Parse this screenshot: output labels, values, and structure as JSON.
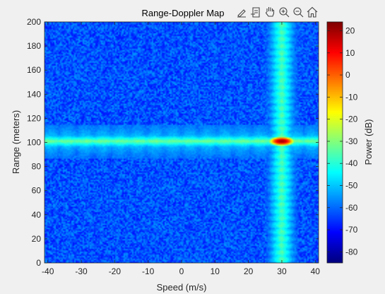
{
  "chart_data": {
    "type": "heatmap",
    "title": "Range-Doppler Map",
    "xlabel": "Speed (m/s)",
    "ylabel": "Range (meters)",
    "xlim": [
      -41,
      41
    ],
    "ylim": [
      0,
      200
    ],
    "xticks": [
      -40,
      -30,
      -20,
      -10,
      0,
      10,
      20,
      30,
      40
    ],
    "yticks": [
      0,
      20,
      40,
      60,
      80,
      100,
      120,
      140,
      160,
      180,
      200
    ],
    "colorbar": {
      "label": "Power (dB)",
      "range": [
        -85,
        24
      ],
      "ticks": [
        -80,
        -70,
        -60,
        -50,
        -40,
        -30,
        -20,
        -10,
        0,
        10,
        20
      ],
      "colormap": "jet"
    },
    "target": {
      "speed": 30,
      "range": 101,
      "peak_power": 20
    },
    "background_power": [
      -70,
      -55
    ],
    "colors": {
      "dark_blue": "#00008f",
      "blue": "#0000ff",
      "cyan": "#00ffff",
      "yellow": "#ffff00",
      "red": "#ff0000",
      "dark_red": "#800000"
    }
  },
  "toolbar": {
    "icons": [
      "edit-icon",
      "data-cursor-icon",
      "pan-icon",
      "zoom-in-icon",
      "zoom-out-icon",
      "home-icon"
    ]
  }
}
